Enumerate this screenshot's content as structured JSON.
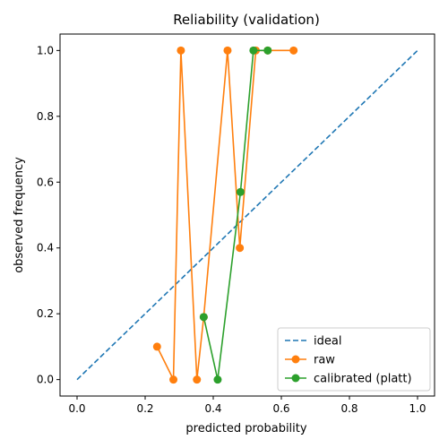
{
  "chart_data": {
    "type": "line",
    "title": "Reliability (validation)",
    "xlabel": "predicted probability",
    "ylabel": "observed frequency",
    "xlim": [
      -0.05,
      1.05
    ],
    "ylim": [
      -0.05,
      1.05
    ],
    "xticks": [
      0.0,
      0.2,
      0.4,
      0.6,
      0.8,
      1.0
    ],
    "yticks": [
      0.0,
      0.2,
      0.4,
      0.6,
      0.8,
      1.0
    ],
    "xtick_labels": [
      "0.0",
      "0.2",
      "0.4",
      "0.6",
      "0.8",
      "1.0"
    ],
    "ytick_labels": [
      "0.0",
      "0.2",
      "0.4",
      "0.6",
      "0.8",
      "1.0"
    ],
    "grid": false,
    "legend_position": "bottom-right",
    "series": [
      {
        "name": "ideal",
        "style": "dashed",
        "marker": "none",
        "color": "#1f77b4",
        "x": [
          0.0,
          1.0
        ],
        "y": [
          0.0,
          1.0
        ]
      },
      {
        "name": "raw",
        "style": "solid",
        "marker": "circle",
        "color": "#ff7f0e",
        "x": [
          0.235,
          0.283,
          0.305,
          0.352,
          0.372,
          0.442,
          0.478,
          0.525,
          0.56,
          0.636
        ],
        "y": [
          0.1,
          0.0,
          1.0,
          0.0,
          0.19,
          1.0,
          0.4,
          1.0,
          1.0,
          1.0
        ]
      },
      {
        "name": "calibrated (platt)",
        "style": "solid",
        "marker": "circle",
        "color": "#2ca02c",
        "x": [
          0.372,
          0.413,
          0.48,
          0.518,
          0.56
        ],
        "y": [
          0.19,
          0.0,
          0.57,
          1.0,
          1.0
        ]
      }
    ]
  }
}
